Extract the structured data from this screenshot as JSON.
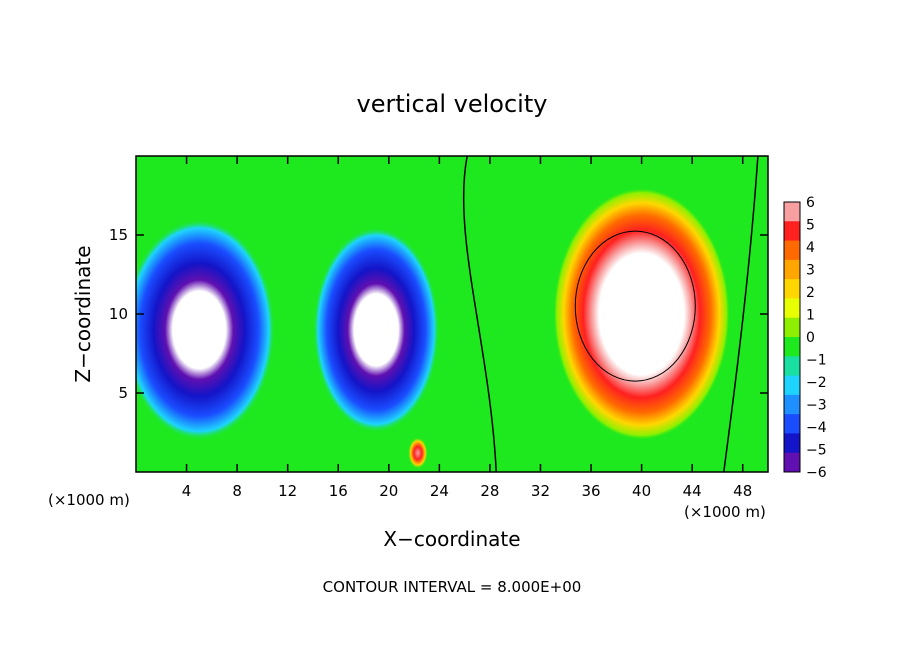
{
  "chart_data": {
    "type": "heatmap",
    "title": "vertical velocity",
    "xlabel": "X−coordinate",
    "ylabel": "Z−coordinate",
    "x_units": "(×1000 m)",
    "z_units": "(×1000 m)",
    "xlim": [
      0,
      50
    ],
    "ylim": [
      0,
      20
    ],
    "x_ticks": [
      4,
      8,
      12,
      16,
      20,
      24,
      28,
      32,
      36,
      40,
      44,
      48
    ],
    "y_ticks": [
      5,
      10,
      15
    ],
    "colorbar": {
      "ticks": [
        "6",
        "5",
        "4",
        "3",
        "2",
        "1",
        "0",
        "−1",
        "−2",
        "−3",
        "−4",
        "−5",
        "−6"
      ],
      "colors": [
        "#f8a0a0",
        "#ff2020",
        "#ff6a00",
        "#ffa500",
        "#ffd700",
        "#e8ff00",
        "#8ef000",
        "#1ee81e",
        "#19e0a0",
        "#1ed4ff",
        "#1e90ff",
        "#1a4dff",
        "#1414c8",
        "#6010b0"
      ]
    },
    "contour_interval": "CONTOUR INTERVAL = 8.000E+00",
    "regions": [
      {
        "kind": "downdraft",
        "x": 5,
        "z": 9,
        "rx": 6,
        "rz": 7,
        "w": -9
      },
      {
        "kind": "downdraft",
        "x": 19,
        "z": 9,
        "rx": 5,
        "rz": 6.5,
        "w": -9
      },
      {
        "kind": "updraft",
        "x": 40,
        "z": 10,
        "rx": 7,
        "rz": 8,
        "w": 9
      }
    ]
  }
}
